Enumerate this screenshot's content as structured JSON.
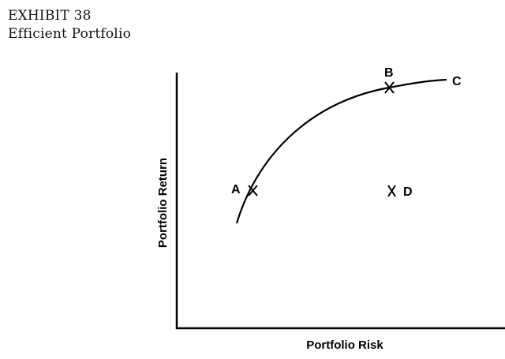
{
  "exhibit": {
    "number_label": "EXHIBIT 38",
    "title": "Efficient Portfolio"
  },
  "diagram": {
    "x_axis_label": "Portfolio Risk",
    "y_axis_label": "Portfolio Return",
    "curve_end_label": "C",
    "points": [
      {
        "label": "A",
        "on_curve": true
      },
      {
        "label": "B",
        "on_curve": true
      },
      {
        "label": "D",
        "on_curve": false
      }
    ],
    "line_color": "#000000"
  }
}
